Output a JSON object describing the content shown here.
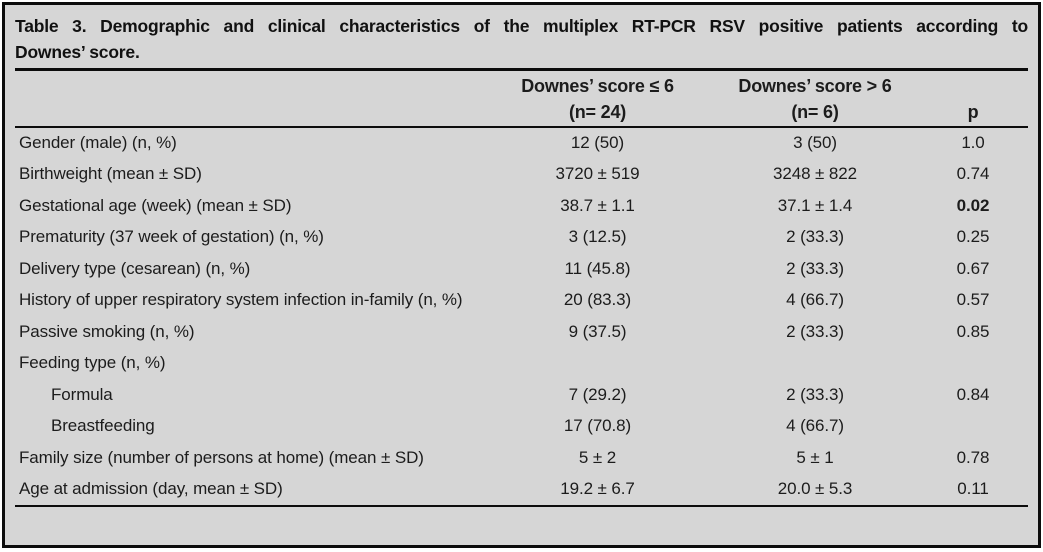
{
  "figure": {
    "caption": {
      "line1": "Table 3. Demographic and clinical characteristics of the multiplex RT-PCR RSV positive patients according to",
      "line2": "Downes’ score."
    },
    "header": {
      "group1_line1": "Downes’ score ≤ 6",
      "group1_line2": "(n= 24)",
      "group2_line1": "Downes’ score > 6",
      "group2_line2": "(n= 6)",
      "p_label": "p"
    },
    "rows": [
      {
        "label": "Gender (male) (n, %)",
        "indent": false,
        "score_le6": "12 (50)",
        "score_gt6": "3 (50)",
        "p": "1.0",
        "p_bold": false
      },
      {
        "label": "Birthweight (mean ± SD)",
        "indent": false,
        "score_le6": "3720 ± 519",
        "score_gt6": "3248 ± 822",
        "p": "0.74",
        "p_bold": false
      },
      {
        "label": "Gestational age (week) (mean ± SD)",
        "indent": false,
        "score_le6": "38.7 ± 1.1",
        "score_gt6": "37.1 ± 1.4",
        "p": "0.02",
        "p_bold": true
      },
      {
        "label": "Prematurity (37 week of gestation) (n, %)",
        "indent": false,
        "score_le6": "3 (12.5)",
        "score_gt6": "2 (33.3)",
        "p": "0.25",
        "p_bold": false
      },
      {
        "label": "Delivery type (cesarean) (n, %)",
        "indent": false,
        "score_le6": "11 (45.8)",
        "score_gt6": "2 (33.3)",
        "p": "0.67",
        "p_bold": false
      },
      {
        "label": "History of upper respiratory system infection in-family (n, %)",
        "indent": false,
        "score_le6": "20 (83.3)",
        "score_gt6": "4 (66.7)",
        "p": "0.57",
        "p_bold": false
      },
      {
        "label": "Passive smoking (n, %)",
        "indent": false,
        "score_le6": "9 (37.5)",
        "score_gt6": "2 (33.3)",
        "p": "0.85",
        "p_bold": false
      },
      {
        "label": "Feeding type (n, %)",
        "indent": false,
        "score_le6": "",
        "score_gt6": "",
        "p": "",
        "p_bold": false
      },
      {
        "label": "Formula",
        "indent": true,
        "score_le6": "7 (29.2)",
        "score_gt6": "2 (33.3)",
        "p": "0.84",
        "p_bold": false
      },
      {
        "label": "Breastfeeding",
        "indent": true,
        "score_le6": "17 (70.8)",
        "score_gt6": "4 (66.7)",
        "p": "",
        "p_bold": false
      },
      {
        "label": "Family size (number of persons at home) (mean ± SD)",
        "indent": false,
        "score_le6": "5 ± 2",
        "score_gt6": "5 ± 1",
        "p": "0.78",
        "p_bold": false
      },
      {
        "label": "Age at admission (day, mean ± SD)",
        "indent": false,
        "score_le6": "19.2 ± 6.7",
        "score_gt6": "20.0 ± 5.3",
        "p": "0.11",
        "p_bold": false
      }
    ]
  },
  "colors": {
    "background": "#d6d6d6",
    "rule": "#0c0c0c",
    "text": "#1c1c1c",
    "outer_margin": "#ffffff"
  }
}
